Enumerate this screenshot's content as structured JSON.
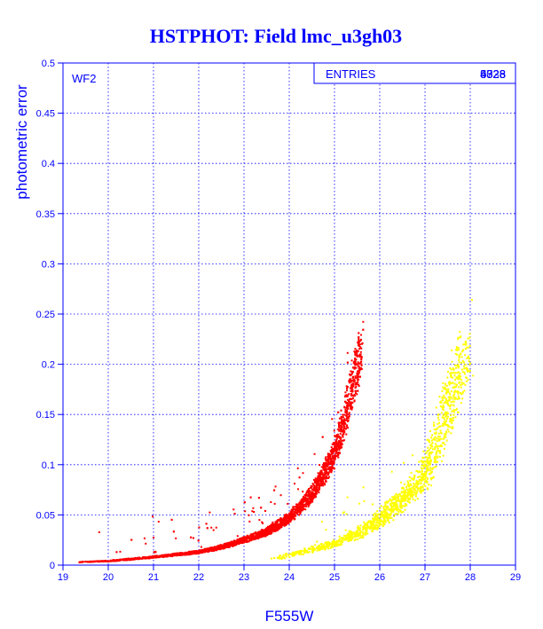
{
  "chart_data": {
    "type": "scatter",
    "title": "HSTPHOT: Field lmc_u3gh03",
    "xlabel": "F555W",
    "ylabel": "photometric error",
    "xlim": [
      19,
      29
    ],
    "ylim": [
      0,
      0.5
    ],
    "xticks": [
      "19",
      "20",
      "21",
      "22",
      "23",
      "24",
      "25",
      "26",
      "27",
      "28",
      "29"
    ],
    "yticks": [
      "0",
      "0.05",
      "0.1",
      "0.15",
      "0.2",
      "0.25",
      "0.3",
      "0.35",
      "0.4",
      "0.45",
      "0.5"
    ],
    "grid": true,
    "panel_label": "WF2",
    "stats_box": {
      "label": "ENTRIES",
      "values": [
        "4323",
        "5738",
        "9028",
        "6826"
      ]
    },
    "colors": {
      "title": "#0000ff",
      "axes": "#0000ff",
      "grid": "#0000ff",
      "series_main": "#ff0000",
      "series_secondary": "#ffff00",
      "background": "#ffffff"
    },
    "series": [
      {
        "color": "#ff0000",
        "trend": [
          {
            "x": 19.3,
            "y": 0.003
          },
          {
            "x": 20.0,
            "y": 0.004
          },
          {
            "x": 21.0,
            "y": 0.008
          },
          {
            "x": 22.0,
            "y": 0.013
          },
          {
            "x": 22.5,
            "y": 0.018
          },
          {
            "x": 23.0,
            "y": 0.025
          },
          {
            "x": 23.5,
            "y": 0.033
          },
          {
            "x": 24.0,
            "y": 0.047
          },
          {
            "x": 24.5,
            "y": 0.07
          },
          {
            "x": 25.0,
            "y": 0.11
          },
          {
            "x": 25.2,
            "y": 0.14
          },
          {
            "x": 25.4,
            "y": 0.18
          },
          {
            "x": 25.6,
            "y": 0.215
          }
        ]
      },
      {
        "color": "#ffff00",
        "trend": [
          {
            "x": 23.6,
            "y": 0.005
          },
          {
            "x": 24.0,
            "y": 0.01
          },
          {
            "x": 24.5,
            "y": 0.015
          },
          {
            "x": 25.0,
            "y": 0.022
          },
          {
            "x": 25.5,
            "y": 0.031
          },
          {
            "x": 26.0,
            "y": 0.045
          },
          {
            "x": 26.5,
            "y": 0.065
          },
          {
            "x": 27.0,
            "y": 0.09
          },
          {
            "x": 27.3,
            "y": 0.125
          },
          {
            "x": 27.6,
            "y": 0.17
          },
          {
            "x": 27.9,
            "y": 0.21
          }
        ]
      }
    ]
  }
}
